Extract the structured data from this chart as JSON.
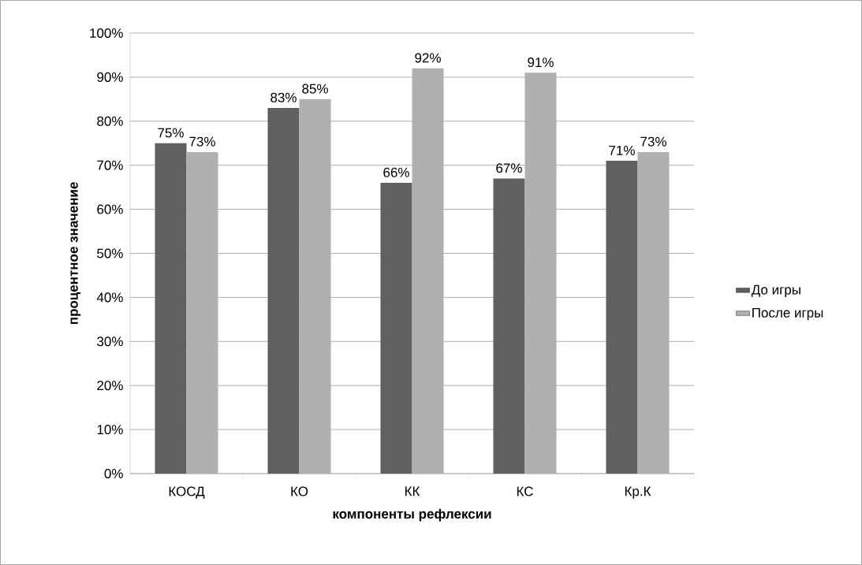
{
  "chart_data": {
    "type": "bar",
    "xlabel": "компоненты рефлексии",
    "ylabel": "процентное значение",
    "categories": [
      "КОСД",
      "КО",
      "КК",
      "КС",
      "Кр.К"
    ],
    "series": [
      {
        "name": "До игры",
        "color": "#606060",
        "values": [
          75,
          83,
          66,
          67,
          71
        ],
        "value_labels": [
          "75%",
          "83%",
          "66%",
          "67%",
          "71%"
        ]
      },
      {
        "name": "После игры",
        "color": "#b0b0b0",
        "values": [
          73,
          85,
          92,
          91,
          73
        ],
        "value_labels": [
          "73%",
          "85%",
          "92%",
          "91%",
          "73%"
        ]
      }
    ],
    "ylim": [
      0,
      100
    ],
    "yticks": [
      {
        "value": 0,
        "label": "0%"
      },
      {
        "value": 10,
        "label": "10%"
      },
      {
        "value": 20,
        "label": "20%"
      },
      {
        "value": 30,
        "label": "30%"
      },
      {
        "value": 40,
        "label": "40%"
      },
      {
        "value": 50,
        "label": "50%"
      },
      {
        "value": 60,
        "label": "60%"
      },
      {
        "value": 70,
        "label": "70%"
      },
      {
        "value": 80,
        "label": "80%"
      },
      {
        "value": 90,
        "label": "90%"
      },
      {
        "value": 100,
        "label": "100%"
      }
    ],
    "grid": "y",
    "legend": "right"
  }
}
